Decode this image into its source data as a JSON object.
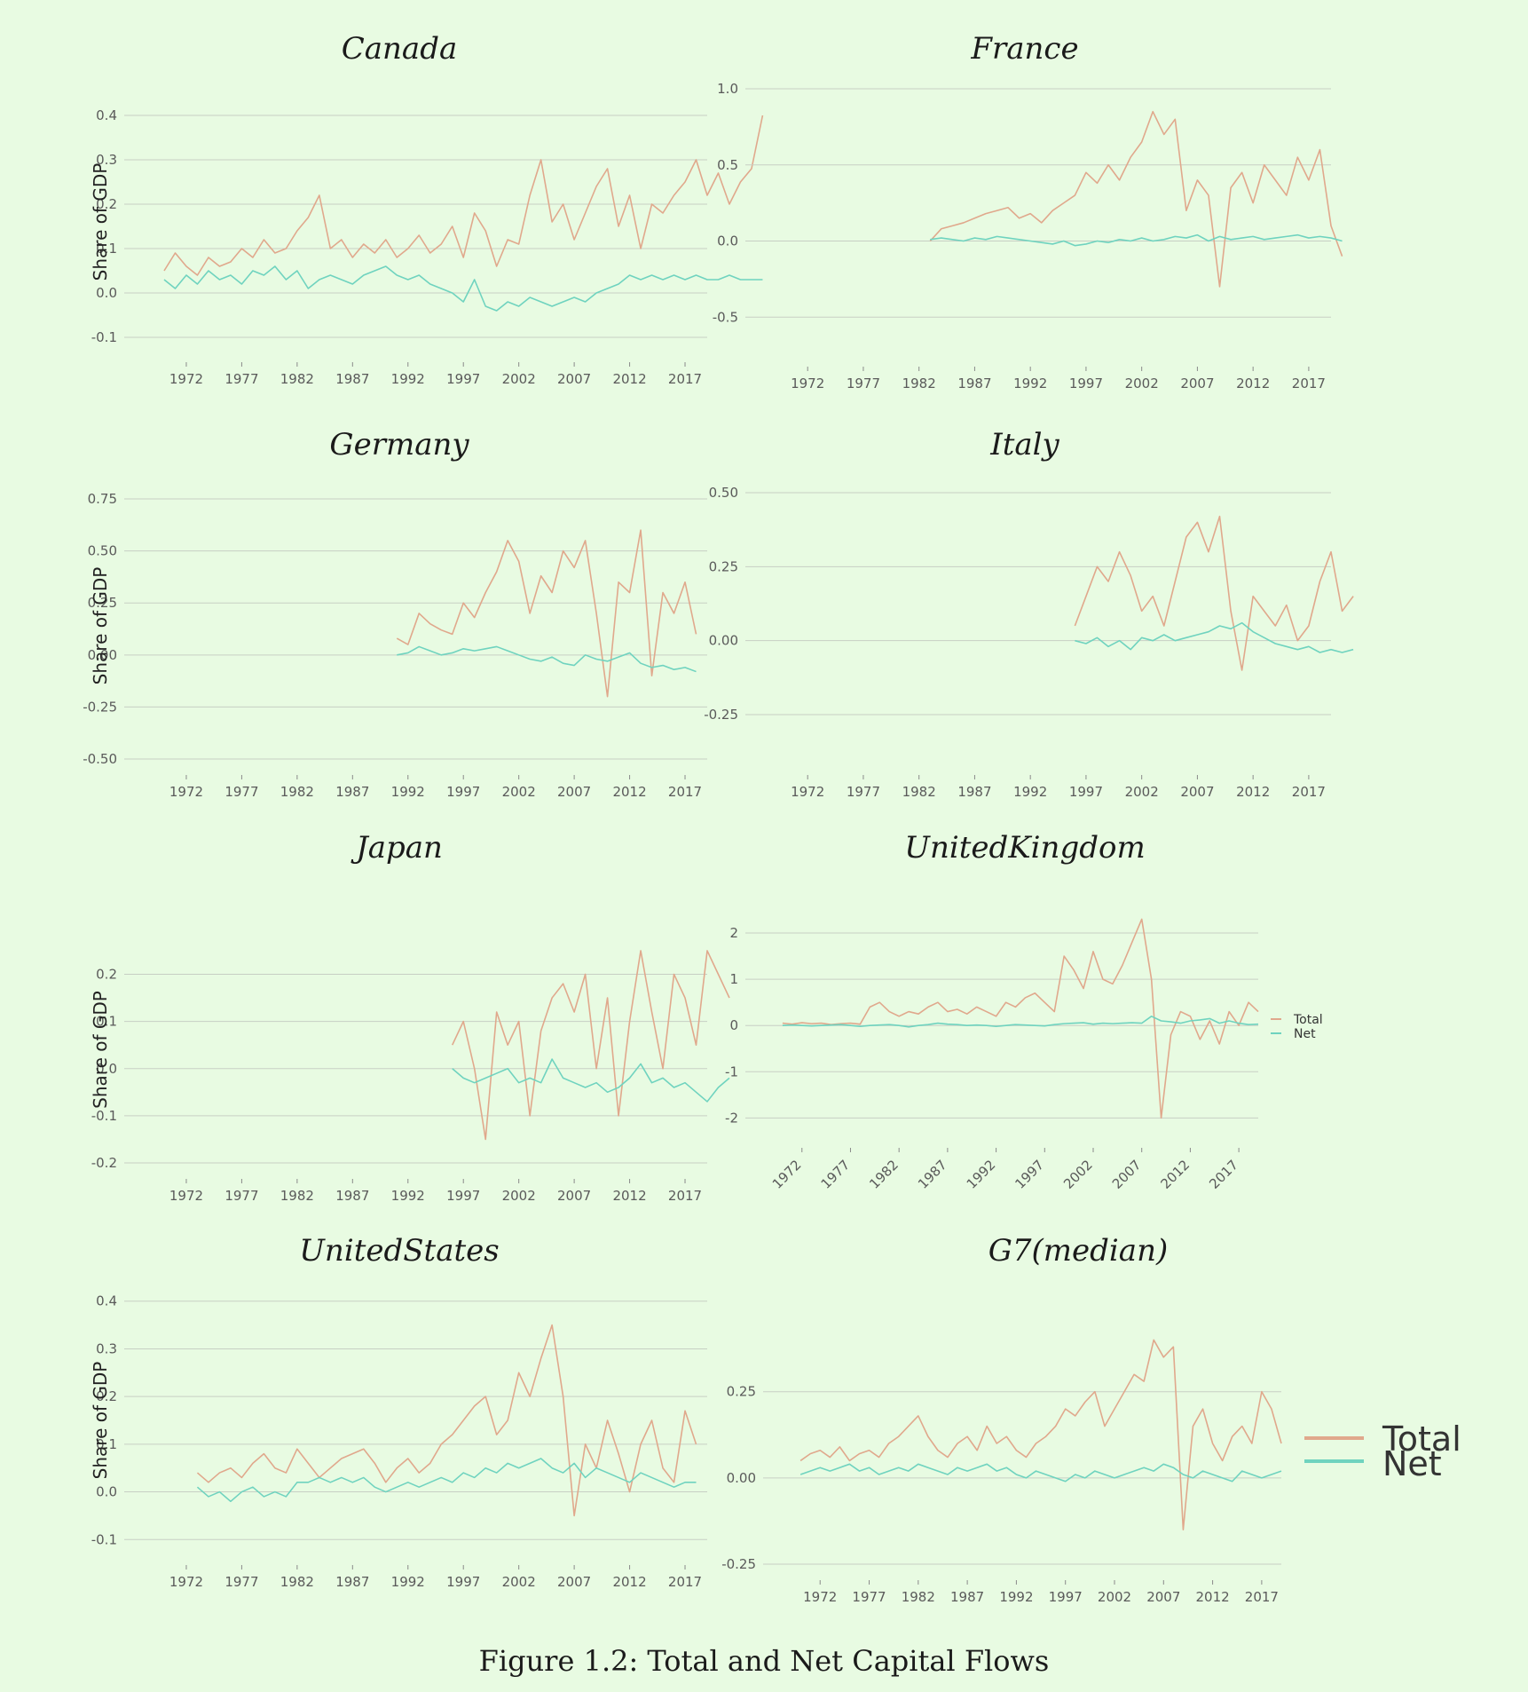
{
  "figure": {
    "caption": "Figure 1.2: Total and Net Capital Flows",
    "colors": {
      "total": "#e0a88c",
      "net": "#6fd3bf",
      "background": "#e8fbe2"
    }
  },
  "chart_data": [
    {
      "type": "line",
      "title": "Canada",
      "ylabel": "Share of GDP",
      "xlim": [
        1968,
        2019
      ],
      "ylim": [
        -0.12,
        0.44
      ],
      "yticks": [
        -0.1,
        0.0,
        0.1,
        0.2,
        0.3,
        0.4
      ],
      "ytick_labels": [
        "-0.1",
        "0.0",
        "0.1",
        "0.2",
        "0.3",
        "0.4"
      ],
      "xticks": [
        1972,
        1977,
        1982,
        1987,
        1992,
        1997,
        2002,
        2007,
        2012,
        2017
      ],
      "xtick_labels": [
        "1972",
        "1977",
        "1982",
        "1987",
        "1992",
        "1997",
        "2002",
        "2007",
        "2012",
        "2017"
      ],
      "series": [
        {
          "name": "Total",
          "start": 1970,
          "values": [
            0.05,
            0.09,
            0.06,
            0.04,
            0.08,
            0.06,
            0.07,
            0.1,
            0.08,
            0.12,
            0.09,
            0.1,
            0.14,
            0.17,
            0.22,
            0.1,
            0.12,
            0.08,
            0.11,
            0.09,
            0.12,
            0.08,
            0.1,
            0.13,
            0.09,
            0.11,
            0.15,
            0.08,
            0.18,
            0.14,
            0.06,
            0.12,
            0.11,
            0.22,
            0.3,
            0.16,
            0.2,
            0.12,
            0.18,
            0.24,
            0.28,
            0.15,
            0.22,
            0.1,
            0.2,
            0.18,
            0.22,
            0.25,
            0.3,
            0.22,
            0.27,
            0.2,
            0.25,
            0.28,
            0.4
          ]
        },
        {
          "name": "Net",
          "start": 1970,
          "values": [
            0.03,
            0.01,
            0.04,
            0.02,
            0.05,
            0.03,
            0.04,
            0.02,
            0.05,
            0.04,
            0.06,
            0.03,
            0.05,
            0.01,
            0.03,
            0.04,
            0.03,
            0.02,
            0.04,
            0.05,
            0.06,
            0.04,
            0.03,
            0.04,
            0.02,
            0.01,
            0.0,
            -0.02,
            0.03,
            -0.03,
            -0.04,
            -0.02,
            -0.03,
            -0.01,
            -0.02,
            -0.03,
            -0.02,
            -0.01,
            -0.02,
            0.0,
            0.01,
            0.02,
            0.04,
            0.03,
            0.04,
            0.03,
            0.04,
            0.03,
            0.04,
            0.03,
            0.03,
            0.04,
            0.03,
            0.03,
            0.03
          ]
        }
      ]
    },
    {
      "type": "line",
      "title": "France",
      "ylabel": "",
      "xlim": [
        1968,
        2019
      ],
      "ylim": [
        -0.72,
        1.0
      ],
      "yticks": [
        -0.5,
        0.0,
        0.5,
        1.0
      ],
      "ytick_labels": [
        "-0.5",
        "0.0",
        "0.5",
        "1.0"
      ],
      "xticks": [
        1972,
        1977,
        1982,
        1987,
        1992,
        1997,
        2002,
        2007,
        2012,
        2017
      ],
      "xtick_labels": [
        "1972",
        "1977",
        "1982",
        "1987",
        "1992",
        "1997",
        "2002",
        "2007",
        "2012",
        "2017"
      ],
      "series": [
        {
          "name": "Total",
          "start": 1983,
          "values": [
            0.0,
            0.08,
            0.1,
            0.12,
            0.15,
            0.18,
            0.2,
            0.22,
            0.15,
            0.18,
            0.12,
            0.2,
            0.25,
            0.3,
            0.45,
            0.38,
            0.5,
            0.4,
            0.55,
            0.65,
            0.85,
            0.7,
            0.8,
            0.2,
            0.4,
            0.3,
            -0.3,
            0.35,
            0.45,
            0.25,
            0.5,
            0.4,
            0.3,
            0.55,
            0.4,
            0.6,
            0.1,
            -0.1
          ]
        },
        {
          "name": "Net",
          "start": 1983,
          "values": [
            0.01,
            0.02,
            0.01,
            0.0,
            0.02,
            0.01,
            0.03,
            0.02,
            0.01,
            0.0,
            -0.01,
            -0.02,
            0.0,
            -0.03,
            -0.02,
            0.0,
            -0.01,
            0.01,
            0.0,
            0.02,
            0.0,
            0.01,
            0.03,
            0.02,
            0.04,
            0.0,
            0.03,
            0.01,
            0.02,
            0.03,
            0.01,
            0.02,
            0.03,
            0.04,
            0.02,
            0.03,
            0.02,
            0.0
          ]
        }
      ]
    },
    {
      "type": "line",
      "title": "Germany",
      "ylabel": "Share of GDP",
      "xlim": [
        1968,
        2019
      ],
      "ylim": [
        -0.5,
        0.78
      ],
      "yticks": [
        -0.5,
        -0.25,
        0.0,
        0.25,
        0.5,
        0.75
      ],
      "ytick_labels": [
        "-0.50",
        "-0.25",
        "0.00",
        "0.25",
        "0.50",
        "0.75"
      ],
      "xticks": [
        1972,
        1977,
        1982,
        1987,
        1992,
        1997,
        2002,
        2007,
        2012,
        2017
      ],
      "xtick_labels": [
        "1972",
        "1977",
        "1982",
        "1987",
        "1992",
        "1997",
        "2002",
        "2007",
        "2012",
        "2017"
      ],
      "series": [
        {
          "name": "Total",
          "start": 1991,
          "values": [
            0.08,
            0.05,
            0.2,
            0.15,
            0.12,
            0.1,
            0.25,
            0.18,
            0.3,
            0.4,
            0.55,
            0.45,
            0.2,
            0.38,
            0.3,
            0.5,
            0.42,
            0.55,
            0.2,
            -0.2,
            0.35,
            0.3,
            0.6,
            -0.1,
            0.3,
            0.2,
            0.35,
            0.1
          ]
        },
        {
          "name": "Net",
          "start": 1991,
          "values": [
            0.0,
            0.01,
            0.04,
            0.02,
            0.0,
            0.01,
            0.03,
            0.02,
            0.03,
            0.04,
            0.02,
            0.0,
            -0.02,
            -0.03,
            -0.01,
            -0.04,
            -0.05,
            0.0,
            -0.02,
            -0.03,
            -0.01,
            0.01,
            -0.04,
            -0.06,
            -0.05,
            -0.07,
            -0.06,
            -0.08
          ]
        }
      ]
    },
    {
      "type": "line",
      "title": "Italy",
      "ylabel": "",
      "xlim": [
        1968,
        2019
      ],
      "ylim": [
        -0.4,
        0.5
      ],
      "yticks": [
        -0.25,
        0.0,
        0.25,
        0.5
      ],
      "ytick_labels": [
        "-0.25",
        "0.00",
        "0.25",
        "0.50"
      ],
      "xticks": [
        1972,
        1977,
        1982,
        1987,
        1992,
        1997,
        2002,
        2007,
        2012,
        2017
      ],
      "xtick_labels": [
        "1972",
        "1977",
        "1982",
        "1987",
        "1992",
        "1997",
        "2002",
        "2007",
        "2012",
        "2017"
      ],
      "series": [
        {
          "name": "Total",
          "start": 1996,
          "values": [
            0.05,
            0.15,
            0.25,
            0.2,
            0.3,
            0.22,
            0.1,
            0.15,
            0.05,
            0.2,
            0.35,
            0.4,
            0.3,
            0.42,
            0.1,
            -0.1,
            0.15,
            0.1,
            0.05,
            0.12,
            0.0,
            0.05,
            0.2,
            0.3,
            0.1,
            0.15
          ]
        },
        {
          "name": "Net",
          "start": 1996,
          "values": [
            0.0,
            -0.01,
            0.01,
            -0.02,
            0.0,
            -0.03,
            0.01,
            0.0,
            0.02,
            0.0,
            0.01,
            0.02,
            0.03,
            0.05,
            0.04,
            0.06,
            0.03,
            0.01,
            -0.01,
            -0.02,
            -0.03,
            -0.02,
            -0.04,
            -0.03,
            -0.04,
            -0.03
          ]
        }
      ]
    },
    {
      "type": "line",
      "title": "Japan",
      "ylabel": "Share of GDP",
      "xlim": [
        1968,
        2019
      ],
      "ylim": [
        -0.2,
        0.28
      ],
      "yticks": [
        -0.2,
        -0.1,
        0.0,
        0.1,
        0.2
      ],
      "ytick_labels": [
        "-0.2",
        "-0.1",
        "0.0",
        "0.1",
        "0.2"
      ],
      "xticks": [
        1972,
        1977,
        1982,
        1987,
        1992,
        1997,
        2002,
        2007,
        2012,
        2017
      ],
      "xtick_labels": [
        "1972",
        "1977",
        "1982",
        "1987",
        "1992",
        "1997",
        "2002",
        "2007",
        "2012",
        "2017"
      ],
      "series": [
        {
          "name": "Total",
          "start": 1996,
          "values": [
            0.05,
            0.1,
            0.0,
            -0.15,
            0.12,
            0.05,
            0.1,
            -0.1,
            0.08,
            0.15,
            0.18,
            0.12,
            0.2,
            0.0,
            0.15,
            -0.1,
            0.1,
            0.25,
            0.12,
            0.0,
            0.2,
            0.15,
            0.05,
            0.25,
            0.2,
            0.15
          ]
        },
        {
          "name": "Net",
          "start": 1996,
          "values": [
            0.0,
            -0.02,
            -0.03,
            -0.02,
            -0.01,
            0.0,
            -0.03,
            -0.02,
            -0.03,
            0.02,
            -0.02,
            -0.03,
            -0.04,
            -0.03,
            -0.05,
            -0.04,
            -0.02,
            0.01,
            -0.03,
            -0.02,
            -0.04,
            -0.03,
            -0.05,
            -0.07,
            -0.04,
            -0.02
          ]
        }
      ]
    },
    {
      "type": "line",
      "title": "UnitedKingdom",
      "ylabel": "",
      "xlim": [
        1968,
        2019
      ],
      "ylim": [
        -2.3,
        2.5
      ],
      "yticks": [
        -2,
        -1,
        0,
        1,
        2
      ],
      "ytick_labels": [
        "-2",
        "-1",
        "0",
        "1",
        "2"
      ],
      "xticks": [
        1972,
        1977,
        1982,
        1987,
        1992,
        1997,
        2002,
        2007,
        2012,
        2017
      ],
      "xtick_labels": [
        "1972",
        "1977",
        "1982",
        "1987",
        "1992",
        "1997",
        "2002",
        "2007",
        "2012",
        "2017"
      ],
      "legend": {
        "labels": [
          "Total",
          "Net"
        ],
        "position": "right"
      },
      "series": [
        {
          "name": "Total",
          "start": 1970,
          "values": [
            0.05,
            0.03,
            0.06,
            0.04,
            0.05,
            0.02,
            0.04,
            0.05,
            0.03,
            0.4,
            0.5,
            0.3,
            0.2,
            0.3,
            0.25,
            0.4,
            0.5,
            0.3,
            0.35,
            0.25,
            0.4,
            0.3,
            0.2,
            0.5,
            0.4,
            0.6,
            0.7,
            0.5,
            0.3,
            1.5,
            1.2,
            0.8,
            1.6,
            1.0,
            0.9,
            1.3,
            1.8,
            2.3,
            1.0,
            -2.0,
            -0.2,
            0.3,
            0.2,
            -0.3,
            0.1,
            -0.4,
            0.3,
            0.0,
            0.5,
            0.3
          ]
        },
        {
          "name": "Net",
          "start": 1970,
          "values": [
            0.0,
            0.01,
            0.0,
            -0.01,
            0.0,
            0.01,
            0.02,
            0.0,
            -0.02,
            0.0,
            0.01,
            0.02,
            0.0,
            -0.03,
            0.0,
            0.02,
            0.05,
            0.03,
            0.02,
            0.0,
            0.01,
            0.0,
            -0.02,
            0.0,
            0.02,
            0.01,
            0.0,
            -0.01,
            0.02,
            0.04,
            0.05,
            0.06,
            0.03,
            0.05,
            0.04,
            0.05,
            0.06,
            0.05,
            0.2,
            0.1,
            0.08,
            0.05,
            0.1,
            0.12,
            0.15,
            0.05,
            0.1,
            0.05,
            0.02,
            0.03
          ]
        }
      ]
    },
    {
      "type": "line",
      "title": "UnitedStates",
      "ylabel": "Share of GDP",
      "xlim": [
        1968,
        2019
      ],
      "ylim": [
        -0.12,
        0.42
      ],
      "yticks": [
        -0.1,
        0.0,
        0.1,
        0.2,
        0.3,
        0.4
      ],
      "ytick_labels": [
        "-0.1",
        "0.0",
        "0.1",
        "0.2",
        "0.3",
        "0.4"
      ],
      "xticks": [
        1972,
        1977,
        1982,
        1987,
        1992,
        1997,
        2002,
        2007,
        2012,
        2017
      ],
      "xtick_labels": [
        "1972",
        "1977",
        "1982",
        "1987",
        "1992",
        "1997",
        "2002",
        "2007",
        "2012",
        "2017"
      ],
      "series": [
        {
          "name": "Total",
          "start": 1973,
          "values": [
            0.04,
            0.02,
            0.04,
            0.05,
            0.03,
            0.06,
            0.08,
            0.05,
            0.04,
            0.09,
            0.06,
            0.03,
            0.05,
            0.07,
            0.08,
            0.09,
            0.06,
            0.02,
            0.05,
            0.07,
            0.04,
            0.06,
            0.1,
            0.12,
            0.15,
            0.18,
            0.2,
            0.12,
            0.15,
            0.25,
            0.2,
            0.28,
            0.35,
            0.2,
            -0.05,
            0.1,
            0.05,
            0.15,
            0.08,
            0.0,
            0.1,
            0.15,
            0.05,
            0.02,
            0.17,
            0.1
          ]
        },
        {
          "name": "Net",
          "start": 1973,
          "values": [
            0.01,
            -0.01,
            0.0,
            -0.02,
            0.0,
            0.01,
            -0.01,
            0.0,
            -0.01,
            0.02,
            0.02,
            0.03,
            0.02,
            0.03,
            0.02,
            0.03,
            0.01,
            0.0,
            0.01,
            0.02,
            0.01,
            0.02,
            0.03,
            0.02,
            0.04,
            0.03,
            0.05,
            0.04,
            0.06,
            0.05,
            0.06,
            0.07,
            0.05,
            0.04,
            0.06,
            0.03,
            0.05,
            0.04,
            0.03,
            0.02,
            0.04,
            0.03,
            0.02,
            0.01,
            0.02,
            0.02
          ]
        }
      ]
    },
    {
      "type": "line",
      "title": "G7(median)",
      "ylabel": "",
      "xlim": [
        1968,
        2019
      ],
      "ylim": [
        -0.25,
        0.45
      ],
      "yticks": [
        -0.25,
        0.0,
        0.25
      ],
      "ytick_labels": [
        "-0.25",
        "0.00",
        "0.25"
      ],
      "xticks": [
        1972,
        1977,
        1982,
        1987,
        1992,
        1997,
        2002,
        2007,
        2012,
        2017
      ],
      "xtick_labels": [
        "1972",
        "1977",
        "1982",
        "1987",
        "1992",
        "1997",
        "2002",
        "2007",
        "2012",
        "2017"
      ],
      "legend": {
        "labels": [
          "Total",
          "Net"
        ],
        "position": "right"
      },
      "series": [
        {
          "name": "Total",
          "start": 1970,
          "values": [
            0.05,
            0.07,
            0.08,
            0.06,
            0.09,
            0.05,
            0.07,
            0.08,
            0.06,
            0.1,
            0.12,
            0.15,
            0.18,
            0.12,
            0.08,
            0.06,
            0.1,
            0.12,
            0.08,
            0.15,
            0.1,
            0.12,
            0.08,
            0.06,
            0.1,
            0.12,
            0.15,
            0.2,
            0.18,
            0.22,
            0.25,
            0.15,
            0.2,
            0.25,
            0.3,
            0.28,
            0.4,
            0.35,
            0.38,
            -0.15,
            0.15,
            0.2,
            0.1,
            0.05,
            0.12,
            0.15,
            0.1,
            0.25,
            0.2,
            0.1
          ]
        },
        {
          "name": "Net",
          "start": 1970,
          "values": [
            0.01,
            0.02,
            0.03,
            0.02,
            0.03,
            0.04,
            0.02,
            0.03,
            0.01,
            0.02,
            0.03,
            0.02,
            0.04,
            0.03,
            0.02,
            0.01,
            0.03,
            0.02,
            0.03,
            0.04,
            0.02,
            0.03,
            0.01,
            0.0,
            0.02,
            0.01,
            0.0,
            -0.01,
            0.01,
            0.0,
            0.02,
            0.01,
            0.0,
            0.01,
            0.02,
            0.03,
            0.02,
            0.04,
            0.03,
            0.01,
            0.0,
            0.02,
            0.01,
            0.0,
            -0.01,
            0.02,
            0.01,
            0.0,
            0.01,
            0.02
          ]
        }
      ]
    }
  ]
}
